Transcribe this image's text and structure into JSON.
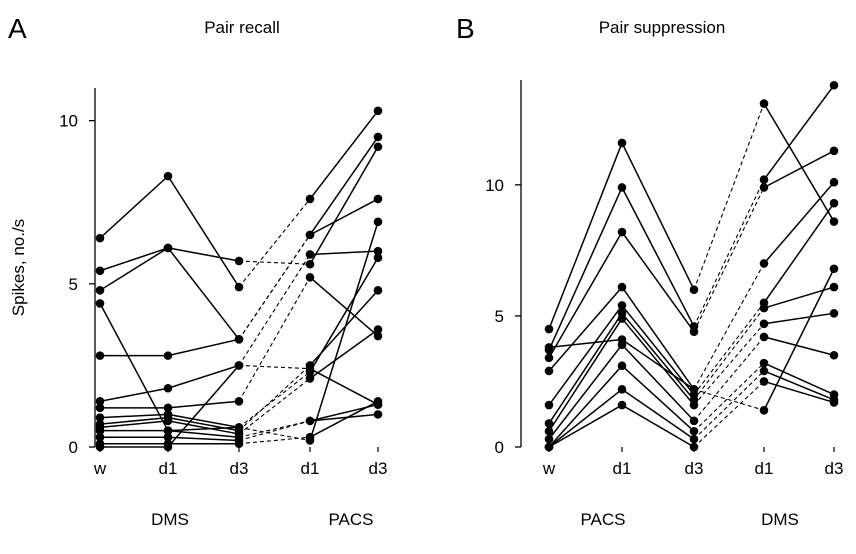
{
  "figure": {
    "ylabel": "Spikes, no./s",
    "colors": {
      "ink": "#000000",
      "background": "#ffffff"
    }
  },
  "chart_data": [
    {
      "type": "line",
      "panel_letter": "A",
      "title": "Pair recall",
      "xlabel": "",
      "ylabel": "Spikes, no./s",
      "x": [
        "w",
        "d1",
        "d3",
        "d1",
        "d3"
      ],
      "groups": [
        {
          "label": "DMS",
          "points": [
            "w",
            "d1",
            "d3"
          ]
        },
        {
          "label": "PACS",
          "points": [
            "d1",
            "d3"
          ]
        }
      ],
      "ylim": [
        0,
        11
      ],
      "yticks": [
        0,
        5,
        10
      ],
      "line_style": "solid within phase, dashed between phases",
      "grid": false,
      "series": [
        {
          "values": [
            6.4,
            8.3,
            4.9,
            7.6,
            10.3
          ]
        },
        {
          "values": [
            5.4,
            6.1,
            5.7,
            5.6,
            9.2
          ]
        },
        {
          "values": [
            4.8,
            6.1,
            3.3,
            6.5,
            9.5
          ]
        },
        {
          "values": [
            4.4,
            0.5,
            0.6,
            0.2,
            6.9
          ]
        },
        {
          "values": [
            2.8,
            2.8,
            3.3,
            6.5,
            7.6
          ]
        },
        {
          "values": [
            1.4,
            1.8,
            2.5,
            5.9,
            6.0
          ]
        },
        {
          "values": [
            1.2,
            1.2,
            1.4,
            5.2,
            3.4
          ]
        },
        {
          "values": [
            0.9,
            1.0,
            0.6,
            2.3,
            5.8
          ]
        },
        {
          "values": [
            0.7,
            0.9,
            0.5,
            2.5,
            4.8
          ]
        },
        {
          "values": [
            0.6,
            0.8,
            0.4,
            2.1,
            3.6
          ]
        },
        {
          "values": [
            0.5,
            0.5,
            0.3,
            0.8,
            1.3
          ]
        },
        {
          "values": [
            0.3,
            0.3,
            0.2,
            0.8,
            1.0
          ]
        },
        {
          "values": [
            0.1,
            0.1,
            0.1,
            0.3,
            1.4
          ]
        },
        {
          "values": [
            0.0,
            0.0,
            2.5,
            2.4,
            1.3
          ]
        }
      ]
    },
    {
      "type": "line",
      "panel_letter": "B",
      "title": "Pair suppression",
      "xlabel": "",
      "ylabel": "",
      "x": [
        "w",
        "d1",
        "d3",
        "d1",
        "d3"
      ],
      "groups": [
        {
          "label": "PACS",
          "points": [
            "w",
            "d1",
            "d3"
          ]
        },
        {
          "label": "DMS",
          "points": [
            "d1",
            "d3"
          ]
        }
      ],
      "ylim": [
        0,
        14
      ],
      "yticks": [
        0,
        5,
        10
      ],
      "line_style": "solid within phase, dashed between phases",
      "grid": false,
      "series": [
        {
          "values": [
            4.5,
            11.6,
            6.0,
            13.1,
            8.6
          ]
        },
        {
          "values": [
            3.7,
            9.9,
            4.6,
            10.2,
            13.8
          ]
        },
        {
          "values": [
            3.4,
            8.2,
            4.4,
            9.9,
            11.3
          ]
        },
        {
          "values": [
            2.9,
            6.1,
            2.2,
            7.0,
            10.1
          ]
        },
        {
          "values": [
            1.6,
            5.4,
            2.0,
            5.5,
            9.3
          ]
        },
        {
          "values": [
            0.9,
            5.1,
            1.8,
            5.3,
            6.1
          ]
        },
        {
          "values": [
            0.6,
            4.9,
            1.6,
            4.7,
            5.1
          ]
        },
        {
          "values": [
            0.3,
            3.9,
            1.0,
            4.2,
            3.5
          ]
        },
        {
          "values": [
            0.0,
            3.1,
            0.6,
            3.2,
            2.0
          ]
        },
        {
          "values": [
            0.0,
            2.2,
            0.3,
            2.9,
            1.8
          ]
        },
        {
          "values": [
            0.0,
            1.6,
            0.0,
            2.5,
            1.7
          ]
        },
        {
          "values": [
            3.8,
            4.1,
            2.2,
            1.4,
            6.8
          ]
        }
      ]
    }
  ]
}
